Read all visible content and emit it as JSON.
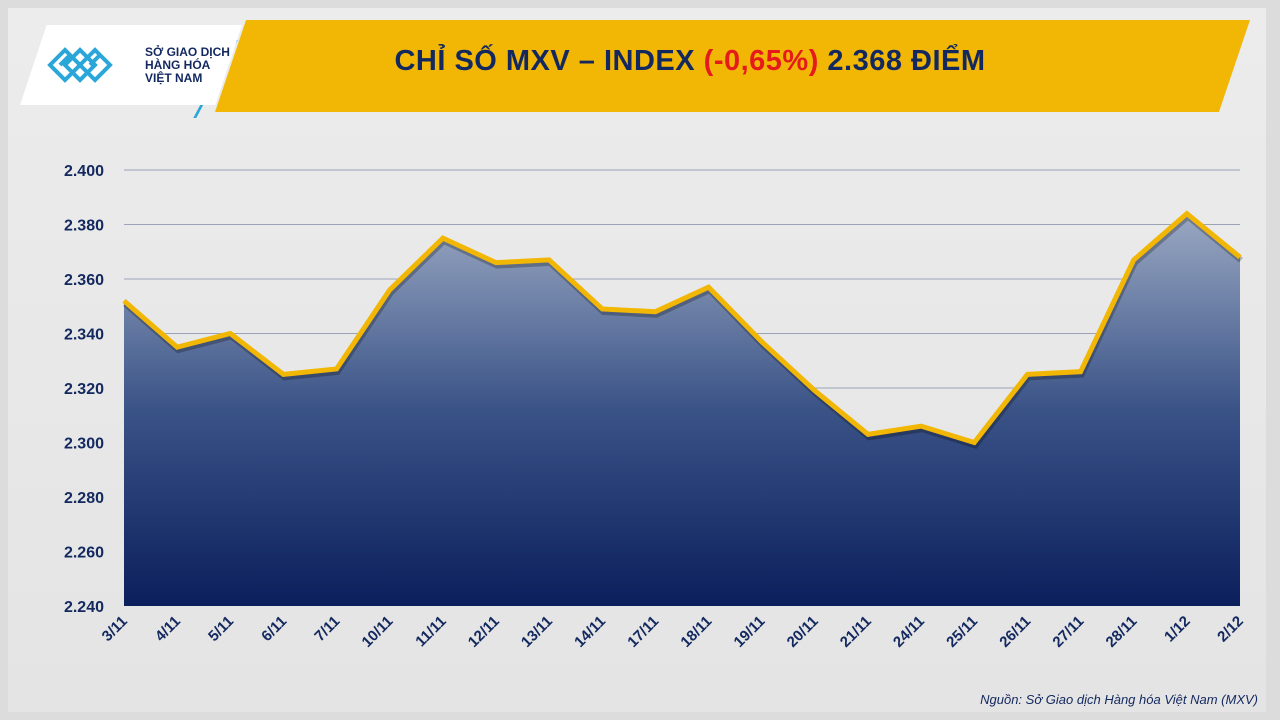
{
  "header": {
    "title_prefix": "CHỈ SỐ MXV – INDEX ",
    "change": "(-0,65%)",
    "title_suffix": " 2.368 ĐIỂM",
    "logo_text": [
      "SỞ GIAO DỊCH",
      "HÀNG HÓA",
      "VIỆT NAM"
    ]
  },
  "source": "Nguồn: Sở Giao dịch Hàng hóa Việt Nam (MXV)",
  "colors": {
    "line": "#f2b705",
    "area_top": "#8a9ab8",
    "area_bottom": "#0b1f5c",
    "title": "#12285e",
    "change": "#e51b1b",
    "banner": "#f2b705"
  },
  "chart_data": {
    "type": "area",
    "title": "CHỈ SỐ MXV – INDEX (-0,65%) 2.368 ĐIỂM",
    "categories": [
      "3/11",
      "4/11",
      "5/11",
      "6/11",
      "7/11",
      "10/11",
      "11/11",
      "12/11",
      "13/11",
      "14/11",
      "17/11",
      "18/11",
      "19/11",
      "20/11",
      "21/11",
      "24/11",
      "25/11",
      "26/11",
      "27/11",
      "28/11",
      "1/12",
      "2/12"
    ],
    "values": [
      2352,
      2335,
      2340,
      2325,
      2327,
      2356,
      2375,
      2366,
      2367,
      2349,
      2348,
      2357,
      2337,
      2319,
      2303,
      2306,
      2300,
      2325,
      2326,
      2367,
      2384,
      2368
    ],
    "ylim": [
      2240,
      2400
    ],
    "yticks": [
      2240,
      2260,
      2280,
      2300,
      2320,
      2340,
      2360,
      2380,
      2400
    ],
    "ytick_labels": [
      "2.240",
      "2.260",
      "2.280",
      "2.300",
      "2.320",
      "2.340",
      "2.360",
      "2.380",
      "2.400"
    ],
    "grid": true,
    "legend": "none"
  }
}
